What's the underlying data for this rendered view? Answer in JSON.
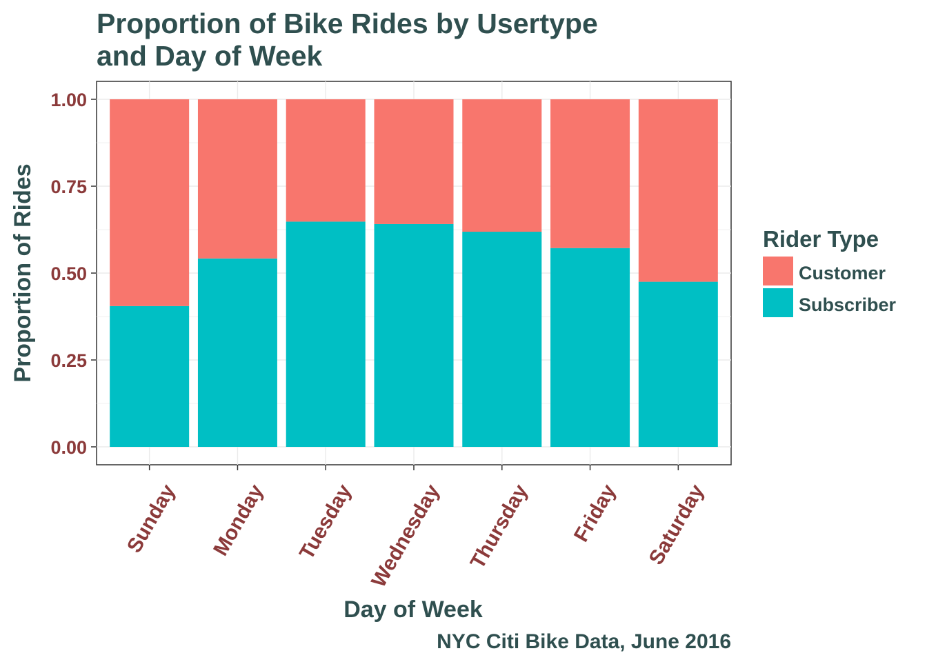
{
  "chart_data": {
    "type": "bar",
    "stacked": "proportional",
    "title": "Proportion of Bike Rides by Usertype and Day of Week",
    "title_lines": [
      "Proportion of Bike Rides by Usertype",
      "and Day of Week"
    ],
    "xlabel": "Day of Week",
    "ylabel": "Proportion of Rides",
    "caption": "NYC Citi Bike Data, June 2016",
    "categories": [
      "Sunday",
      "Monday",
      "Tuesday",
      "Wednesday",
      "Thursday",
      "Friday",
      "Saturday"
    ],
    "series": [
      {
        "name": "Customer",
        "color": "#f8766d",
        "values": [
          0.595,
          0.458,
          0.352,
          0.359,
          0.381,
          0.428,
          0.525
        ]
      },
      {
        "name": "Subscriber",
        "color": "#00bfc4",
        "values": [
          0.405,
          0.542,
          0.648,
          0.641,
          0.619,
          0.572,
          0.475
        ]
      }
    ],
    "ylim": [
      0,
      1
    ],
    "yticks": [
      "0.00",
      "0.25",
      "0.50",
      "0.75",
      "1.00"
    ],
    "grid": true,
    "legend": {
      "title": "Rider Type",
      "position": "right"
    }
  }
}
